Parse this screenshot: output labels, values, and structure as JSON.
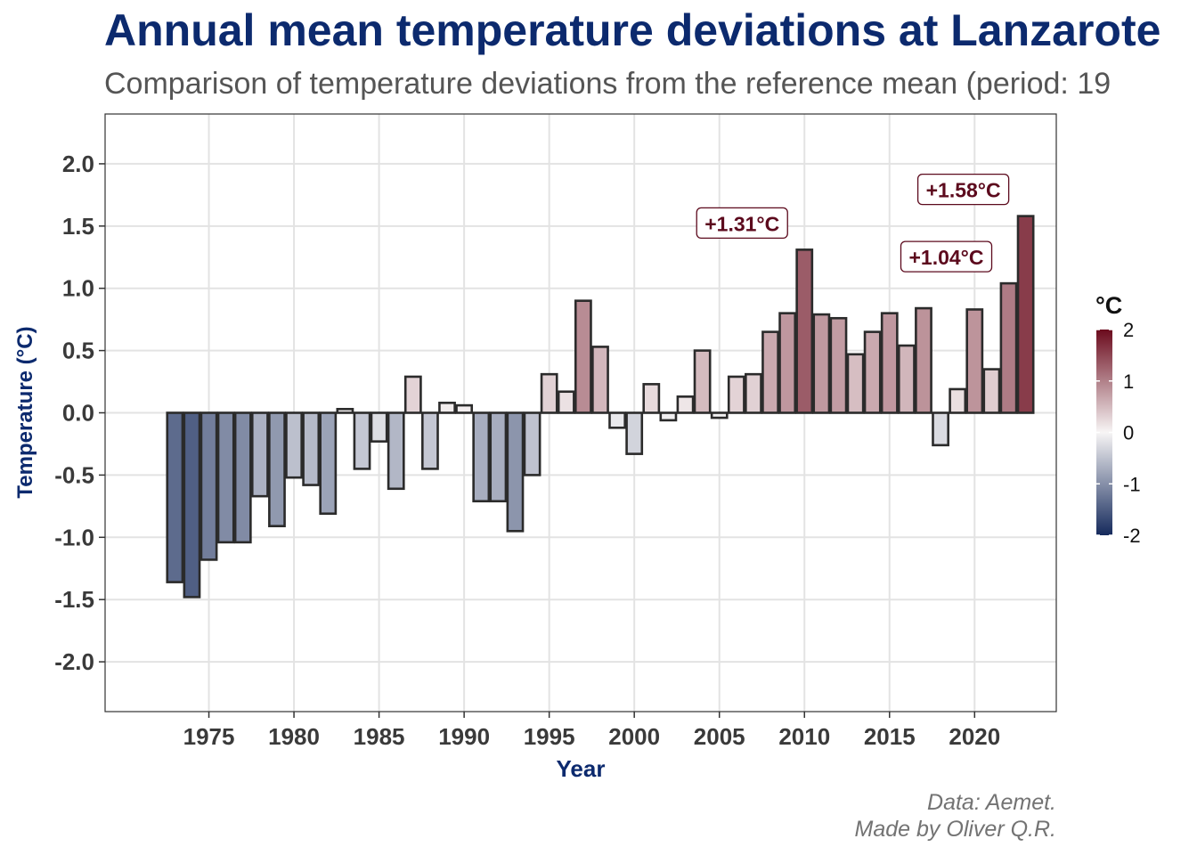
{
  "chart_data": {
    "type": "bar",
    "title": "Annual mean temperature deviations at Lanzarote",
    "subtitle": "Comparison of temperature deviations from the reference mean (period: 19",
    "xlabel": "Year",
    "ylabel": "Temperature (°C)",
    "ylim": [
      -2.4,
      2.4
    ],
    "xlim": [
      1968.9,
      2024.8
    ],
    "x_ticks": [
      1975,
      1980,
      1985,
      1990,
      1995,
      2000,
      2005,
      2010,
      2015,
      2020
    ],
    "y_ticks": [
      -2.0,
      -1.5,
      -1.0,
      -0.5,
      0.0,
      0.5,
      1.0,
      1.5,
      2.0
    ],
    "grid": true,
    "x": [
      1973,
      1974,
      1975,
      1976,
      1977,
      1978,
      1979,
      1980,
      1981,
      1982,
      1983,
      1984,
      1985,
      1986,
      1987,
      1988,
      1989,
      1990,
      1991,
      1992,
      1993,
      1994,
      1995,
      1996,
      1997,
      1998,
      1999,
      2000,
      2001,
      2002,
      2003,
      2004,
      2005,
      2006,
      2007,
      2008,
      2009,
      2010,
      2011,
      2012,
      2013,
      2014,
      2015,
      2016,
      2017,
      2018,
      2019,
      2020,
      2021,
      2022,
      2023
    ],
    "values": [
      -1.36,
      -1.48,
      -1.18,
      -1.04,
      -1.04,
      -0.67,
      -0.91,
      -0.52,
      -0.58,
      -0.81,
      0.03,
      -0.45,
      -0.23,
      -0.61,
      0.29,
      -0.45,
      0.08,
      0.06,
      -0.71,
      -0.71,
      -0.95,
      -0.5,
      0.31,
      0.17,
      0.9,
      0.53,
      -0.12,
      -0.33,
      0.23,
      -0.06,
      0.13,
      0.5,
      -0.04,
      0.29,
      0.31,
      0.65,
      0.8,
      1.31,
      0.79,
      0.76,
      0.47,
      0.65,
      0.8,
      0.54,
      0.84,
      -0.26,
      0.19,
      0.83,
      0.35,
      1.04,
      1.58
    ],
    "annotations": [
      {
        "x": 2010,
        "value": 1.31,
        "text": "+1.31°C"
      },
      {
        "x": 2022,
        "value": 1.04,
        "text": "+1.04°C"
      },
      {
        "x": 2023,
        "value": 1.58,
        "text": "+1.58°C"
      }
    ],
    "legend": {
      "title": "°C",
      "placement": "right",
      "range": [
        -2,
        2
      ],
      "ticks": [
        "2",
        "1",
        "0",
        "-1",
        "-2"
      ],
      "low_color": "#152a5c",
      "mid_color": "#f7f5f5",
      "high_color": "#6b0b1d"
    },
    "caption": [
      "Data: Aemet.",
      "Made by Oliver Q.R."
    ]
  },
  "colors": {
    "title": "#0c2a6e",
    "axis_title": "#0c2a6e",
    "annotation_text": "#5c0a1d",
    "gridline": "#e3e3e3",
    "bar_outline": "#2b2b2b"
  }
}
